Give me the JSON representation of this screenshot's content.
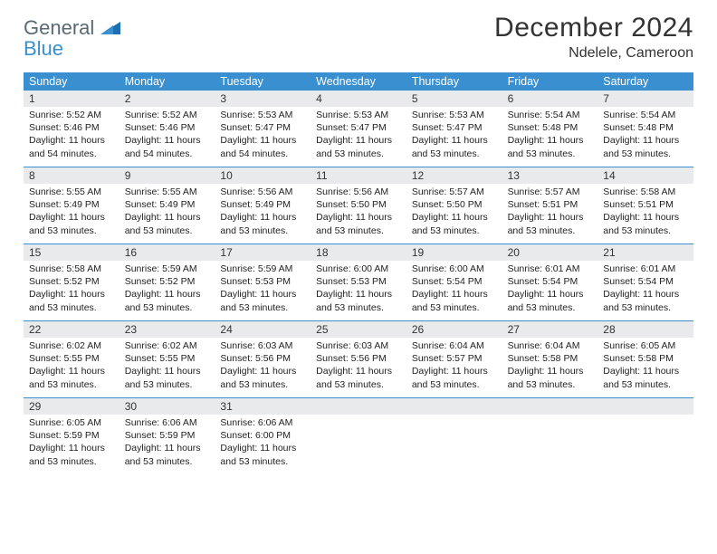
{
  "brand": {
    "part1": "General",
    "part2": "Blue"
  },
  "title": "December 2024",
  "location": "Ndelele, Cameroon",
  "colors": {
    "accent": "#3a8fd0",
    "header_bg": "#3a8fd0",
    "daynum_bg": "#e9eaeb",
    "text": "#333333",
    "white": "#ffffff"
  },
  "day_labels": [
    "Sunday",
    "Monday",
    "Tuesday",
    "Wednesday",
    "Thursday",
    "Friday",
    "Saturday"
  ],
  "weeks": [
    [
      {
        "n": "1",
        "sr": "Sunrise: 5:52 AM",
        "ss": "Sunset: 5:46 PM",
        "dl": "Daylight: 11 hours and 54 minutes."
      },
      {
        "n": "2",
        "sr": "Sunrise: 5:52 AM",
        "ss": "Sunset: 5:46 PM",
        "dl": "Daylight: 11 hours and 54 minutes."
      },
      {
        "n": "3",
        "sr": "Sunrise: 5:53 AM",
        "ss": "Sunset: 5:47 PM",
        "dl": "Daylight: 11 hours and 54 minutes."
      },
      {
        "n": "4",
        "sr": "Sunrise: 5:53 AM",
        "ss": "Sunset: 5:47 PM",
        "dl": "Daylight: 11 hours and 53 minutes."
      },
      {
        "n": "5",
        "sr": "Sunrise: 5:53 AM",
        "ss": "Sunset: 5:47 PM",
        "dl": "Daylight: 11 hours and 53 minutes."
      },
      {
        "n": "6",
        "sr": "Sunrise: 5:54 AM",
        "ss": "Sunset: 5:48 PM",
        "dl": "Daylight: 11 hours and 53 minutes."
      },
      {
        "n": "7",
        "sr": "Sunrise: 5:54 AM",
        "ss": "Sunset: 5:48 PM",
        "dl": "Daylight: 11 hours and 53 minutes."
      }
    ],
    [
      {
        "n": "8",
        "sr": "Sunrise: 5:55 AM",
        "ss": "Sunset: 5:49 PM",
        "dl": "Daylight: 11 hours and 53 minutes."
      },
      {
        "n": "9",
        "sr": "Sunrise: 5:55 AM",
        "ss": "Sunset: 5:49 PM",
        "dl": "Daylight: 11 hours and 53 minutes."
      },
      {
        "n": "10",
        "sr": "Sunrise: 5:56 AM",
        "ss": "Sunset: 5:49 PM",
        "dl": "Daylight: 11 hours and 53 minutes."
      },
      {
        "n": "11",
        "sr": "Sunrise: 5:56 AM",
        "ss": "Sunset: 5:50 PM",
        "dl": "Daylight: 11 hours and 53 minutes."
      },
      {
        "n": "12",
        "sr": "Sunrise: 5:57 AM",
        "ss": "Sunset: 5:50 PM",
        "dl": "Daylight: 11 hours and 53 minutes."
      },
      {
        "n": "13",
        "sr": "Sunrise: 5:57 AM",
        "ss": "Sunset: 5:51 PM",
        "dl": "Daylight: 11 hours and 53 minutes."
      },
      {
        "n": "14",
        "sr": "Sunrise: 5:58 AM",
        "ss": "Sunset: 5:51 PM",
        "dl": "Daylight: 11 hours and 53 minutes."
      }
    ],
    [
      {
        "n": "15",
        "sr": "Sunrise: 5:58 AM",
        "ss": "Sunset: 5:52 PM",
        "dl": "Daylight: 11 hours and 53 minutes."
      },
      {
        "n": "16",
        "sr": "Sunrise: 5:59 AM",
        "ss": "Sunset: 5:52 PM",
        "dl": "Daylight: 11 hours and 53 minutes."
      },
      {
        "n": "17",
        "sr": "Sunrise: 5:59 AM",
        "ss": "Sunset: 5:53 PM",
        "dl": "Daylight: 11 hours and 53 minutes."
      },
      {
        "n": "18",
        "sr": "Sunrise: 6:00 AM",
        "ss": "Sunset: 5:53 PM",
        "dl": "Daylight: 11 hours and 53 minutes."
      },
      {
        "n": "19",
        "sr": "Sunrise: 6:00 AM",
        "ss": "Sunset: 5:54 PM",
        "dl": "Daylight: 11 hours and 53 minutes."
      },
      {
        "n": "20",
        "sr": "Sunrise: 6:01 AM",
        "ss": "Sunset: 5:54 PM",
        "dl": "Daylight: 11 hours and 53 minutes."
      },
      {
        "n": "21",
        "sr": "Sunrise: 6:01 AM",
        "ss": "Sunset: 5:54 PM",
        "dl": "Daylight: 11 hours and 53 minutes."
      }
    ],
    [
      {
        "n": "22",
        "sr": "Sunrise: 6:02 AM",
        "ss": "Sunset: 5:55 PM",
        "dl": "Daylight: 11 hours and 53 minutes."
      },
      {
        "n": "23",
        "sr": "Sunrise: 6:02 AM",
        "ss": "Sunset: 5:55 PM",
        "dl": "Daylight: 11 hours and 53 minutes."
      },
      {
        "n": "24",
        "sr": "Sunrise: 6:03 AM",
        "ss": "Sunset: 5:56 PM",
        "dl": "Daylight: 11 hours and 53 minutes."
      },
      {
        "n": "25",
        "sr": "Sunrise: 6:03 AM",
        "ss": "Sunset: 5:56 PM",
        "dl": "Daylight: 11 hours and 53 minutes."
      },
      {
        "n": "26",
        "sr": "Sunrise: 6:04 AM",
        "ss": "Sunset: 5:57 PM",
        "dl": "Daylight: 11 hours and 53 minutes."
      },
      {
        "n": "27",
        "sr": "Sunrise: 6:04 AM",
        "ss": "Sunset: 5:58 PM",
        "dl": "Daylight: 11 hours and 53 minutes."
      },
      {
        "n": "28",
        "sr": "Sunrise: 6:05 AM",
        "ss": "Sunset: 5:58 PM",
        "dl": "Daylight: 11 hours and 53 minutes."
      }
    ],
    [
      {
        "n": "29",
        "sr": "Sunrise: 6:05 AM",
        "ss": "Sunset: 5:59 PM",
        "dl": "Daylight: 11 hours and 53 minutes."
      },
      {
        "n": "30",
        "sr": "Sunrise: 6:06 AM",
        "ss": "Sunset: 5:59 PM",
        "dl": "Daylight: 11 hours and 53 minutes."
      },
      {
        "n": "31",
        "sr": "Sunrise: 6:06 AM",
        "ss": "Sunset: 6:00 PM",
        "dl": "Daylight: 11 hours and 53 minutes."
      },
      {
        "empty": true
      },
      {
        "empty": true
      },
      {
        "empty": true
      },
      {
        "empty": true
      }
    ]
  ]
}
